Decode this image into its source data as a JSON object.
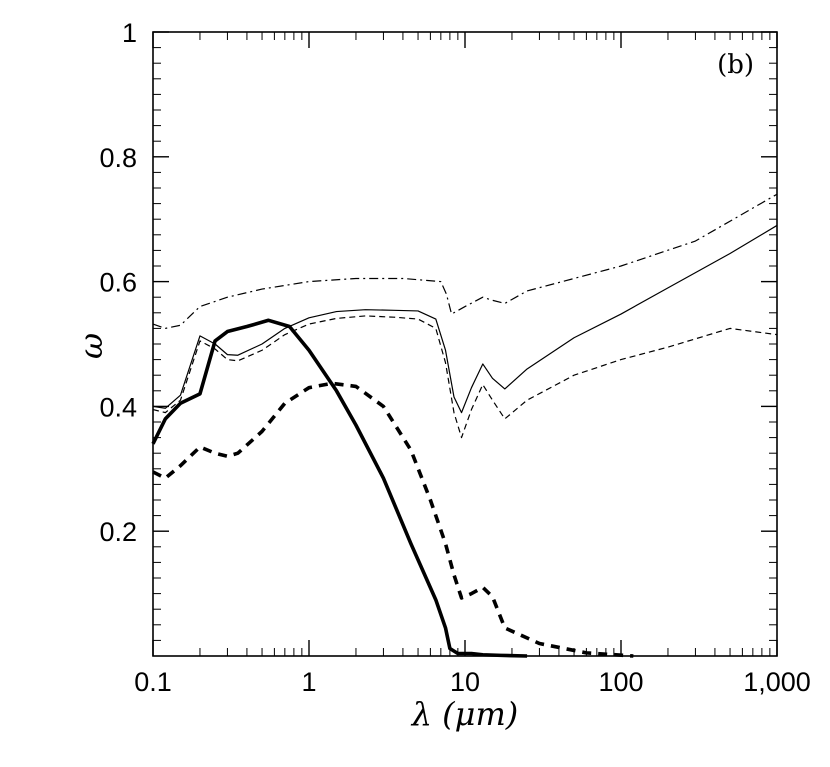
{
  "chart_data": {
    "type": "line",
    "panel_label": "(b)",
    "xlabel": "λ (μm)",
    "ylabel": "ω",
    "x_scale": "log",
    "xlim": [
      0.1,
      1000
    ],
    "ylim": [
      0,
      1
    ],
    "x_ticks": [
      {
        "value": 0.1,
        "label": "0.1"
      },
      {
        "value": 1,
        "label": "1"
      },
      {
        "value": 10,
        "label": "10"
      },
      {
        "value": 100,
        "label": "100"
      },
      {
        "value": 1000,
        "label": "1,000"
      }
    ],
    "y_ticks": [
      {
        "value": 0.2,
        "label": "0.2"
      },
      {
        "value": 0.4,
        "label": "0.4"
      },
      {
        "value": 0.6,
        "label": "0.6"
      },
      {
        "value": 0.8,
        "label": "0.8"
      },
      {
        "value": 1.0,
        "label": "1"
      }
    ],
    "series": [
      {
        "name": "thick-solid",
        "style": "solid",
        "weight": "thick",
        "x": [
          0.1,
          0.12,
          0.15,
          0.2,
          0.25,
          0.3,
          0.4,
          0.55,
          0.75,
          1.0,
          1.5,
          2.0,
          3.0,
          4.5,
          6.5,
          7.5,
          8.0,
          9.0,
          11,
          13,
          17,
          25
        ],
        "y": [
          0.34,
          0.38,
          0.405,
          0.42,
          0.505,
          0.52,
          0.528,
          0.538,
          0.528,
          0.49,
          0.425,
          0.37,
          0.285,
          0.18,
          0.09,
          0.045,
          0.012,
          0.004,
          0.004,
          0.002,
          0.001,
          0.0
        ]
      },
      {
        "name": "thick-dashed",
        "style": "dashed",
        "weight": "thick",
        "x": [
          0.1,
          0.12,
          0.15,
          0.2,
          0.25,
          0.3,
          0.35,
          0.5,
          0.7,
          1.0,
          1.4,
          2.0,
          3.0,
          4.5,
          6.0,
          7.5,
          8.5,
          9.5,
          11,
          13,
          15,
          18,
          30,
          60,
          120
        ],
        "y": [
          0.295,
          0.285,
          0.305,
          0.335,
          0.325,
          0.32,
          0.325,
          0.36,
          0.405,
          0.43,
          0.437,
          0.432,
          0.4,
          0.33,
          0.25,
          0.18,
          0.13,
          0.093,
          0.1,
          0.11,
          0.095,
          0.045,
          0.02,
          0.005,
          0.0
        ]
      },
      {
        "name": "thin-solid",
        "style": "solid",
        "weight": "thin",
        "x": [
          0.1,
          0.12,
          0.15,
          0.2,
          0.25,
          0.3,
          0.35,
          0.5,
          0.7,
          1.0,
          1.5,
          2.3,
          3.5,
          5.0,
          6.5,
          7.5,
          8.5,
          9.5,
          11,
          13,
          15,
          18,
          25,
          50,
          100,
          200,
          500,
          1000
        ],
        "y": [
          0.4,
          0.397,
          0.418,
          0.513,
          0.5,
          0.483,
          0.482,
          0.5,
          0.525,
          0.542,
          0.552,
          0.555,
          0.554,
          0.553,
          0.54,
          0.49,
          0.415,
          0.39,
          0.43,
          0.468,
          0.445,
          0.428,
          0.46,
          0.51,
          0.548,
          0.59,
          0.645,
          0.69
        ]
      },
      {
        "name": "thin-dashed",
        "style": "dashed",
        "weight": "thin",
        "x": [
          0.1,
          0.12,
          0.15,
          0.2,
          0.25,
          0.3,
          0.35,
          0.5,
          0.7,
          1.0,
          1.5,
          2.3,
          3.5,
          5.0,
          6.5,
          7.5,
          8.5,
          9.5,
          11,
          13,
          15,
          18,
          25,
          50,
          100,
          200,
          500,
          1000
        ],
        "y": [
          0.395,
          0.39,
          0.41,
          0.505,
          0.492,
          0.475,
          0.473,
          0.49,
          0.515,
          0.532,
          0.541,
          0.545,
          0.543,
          0.54,
          0.525,
          0.47,
          0.39,
          0.35,
          0.395,
          0.435,
          0.41,
          0.38,
          0.41,
          0.45,
          0.475,
          0.495,
          0.525,
          0.515
        ]
      },
      {
        "name": "dash-dot",
        "style": "dashdot",
        "weight": "thin",
        "x": [
          0.1,
          0.12,
          0.15,
          0.2,
          0.3,
          0.5,
          1.0,
          2.0,
          4.0,
          7.0,
          7.6,
          8.2,
          10,
          13,
          15,
          18,
          25,
          50,
          100,
          300,
          1000
        ],
        "y": [
          0.532,
          0.525,
          0.53,
          0.56,
          0.575,
          0.588,
          0.6,
          0.605,
          0.605,
          0.6,
          0.58,
          0.548,
          0.56,
          0.575,
          0.57,
          0.565,
          0.585,
          0.605,
          0.625,
          0.665,
          0.74
        ]
      }
    ]
  }
}
